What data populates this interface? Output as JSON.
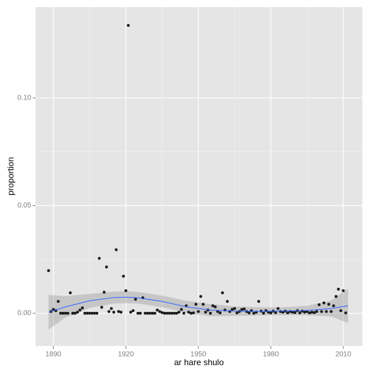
{
  "chart_data": {
    "type": "scatter",
    "x_label": "ar hare shulo",
    "y_label": "proportion",
    "xlim": [
      1882.6,
      2017.9
    ],
    "ylim": [
      -0.0152,
      0.1422
    ],
    "xticks": [
      1890,
      1920,
      1950,
      1980,
      2010
    ],
    "yticks": [
      {
        "value": 0,
        "label": "0.00"
      },
      {
        "value": 0.05,
        "label": "0.05"
      },
      {
        "value": 0.1,
        "label": "0.10"
      }
    ],
    "grid": true,
    "series": [
      {
        "color": "#1a1a1a",
        "x": [
          1888,
          1889,
          1890,
          1891,
          1892,
          1893,
          1894,
          1895,
          1896,
          1897,
          1898,
          1899,
          1900,
          1901,
          1902,
          1903,
          1904,
          1905,
          1906,
          1907,
          1908,
          1909,
          1910,
          1911,
          1912,
          1913,
          1914,
          1915,
          1916,
          1917,
          1918,
          1919,
          1920,
          1921,
          1922,
          1923,
          1924,
          1925,
          1926,
          1927,
          1928,
          1929,
          1930,
          1931,
          1932,
          1933,
          1934,
          1935,
          1936,
          1937,
          1938,
          1939,
          1940,
          1941,
          1942,
          1943,
          1944,
          1945,
          1946,
          1947,
          1948,
          1949,
          1950,
          1951,
          1952,
          1953,
          1954,
          1955,
          1956,
          1957,
          1958,
          1959,
          1960,
          1961,
          1962,
          1963,
          1964,
          1965,
          1966,
          1967,
          1968,
          1969,
          1970,
          1971,
          1972,
          1973,
          1974,
          1975,
          1976,
          1977,
          1978,
          1979,
          1980,
          1981,
          1982,
          1983,
          1984,
          1985,
          1986,
          1987,
          1988,
          1989,
          1990,
          1991,
          1992,
          1993,
          1994,
          1995,
          1996,
          1997,
          1998,
          1999,
          2000,
          2001,
          2002,
          2003,
          2004,
          2005,
          2006,
          2007,
          2008,
          2009,
          2010,
          2011
        ],
        "values": [
          0.0198,
          0.0008,
          0.0018,
          0.0012,
          0.0055,
          0,
          0,
          0,
          0,
          0.0095,
          0,
          0,
          0.0005,
          0.0015,
          0.0025,
          0,
          0,
          0,
          0,
          0,
          0,
          0.0255,
          0.0028,
          0.0098,
          0.0215,
          0.0008,
          0.0022,
          0.0005,
          0.0295,
          0.0008,
          0.0005,
          0.0172,
          0.0105,
          0.1337,
          0.0005,
          0.0012,
          0.0065,
          0,
          0,
          0.0072,
          0,
          0,
          0,
          0,
          0,
          0.0015,
          0.0008,
          0.0003,
          0,
          0,
          0,
          0,
          0,
          0,
          0.0005,
          0.0018,
          0,
          0.0035,
          0.0005,
          0,
          0.0002,
          0.0042,
          0.0008,
          0.0078,
          0.0042,
          0.0005,
          0.0015,
          0,
          0.0035,
          0.003,
          0.0008,
          0.0002,
          0.0095,
          0.0015,
          0.0055,
          0.0008,
          0.0018,
          0.0022,
          0.0002,
          0.0008,
          0.0018,
          0.002,
          0.0008,
          0.0002,
          0.0012,
          0,
          0.0005,
          0.0055,
          0.001,
          0,
          0.0012,
          0.0005,
          0.0002,
          0.001,
          0.0003,
          0.0022,
          0.0008,
          0.0005,
          0.001,
          0.0002,
          0.0008,
          0.0005,
          0.0003,
          0.0012,
          0.0002,
          0.001,
          0.0005,
          0.0008,
          0.0002,
          0.0005,
          0.0003,
          0.0008,
          0.004,
          0.0008,
          0.0048,
          0.0008,
          0.0042,
          0.0008,
          0.0035,
          0.0078,
          0.0112,
          0.0012,
          0.0105,
          0.0002
        ]
      }
    ],
    "smooth": {
      "color": "#3366ff",
      "band_color": "#999999",
      "x": [
        1888,
        1895,
        1905,
        1915,
        1920,
        1925,
        1935,
        1945,
        1955,
        1965,
        1975,
        1985,
        1995,
        2005,
        2012
      ],
      "values": [
        0.0005,
        0.003,
        0.0058,
        0.0073,
        0.0075,
        0.0072,
        0.0055,
        0.003,
        0.0015,
        0.001,
        0.0009,
        0.001,
        0.0013,
        0.0022,
        0.0035
      ],
      "lower": [
        -0.0075,
        -0.002,
        0.0025,
        0.0045,
        0.0047,
        0.0045,
        0.0028,
        0.0002,
        -0.0013,
        -0.0012,
        -0.001,
        -0.0008,
        -0.0009,
        -0.0015,
        -0.0045
      ],
      "upper": [
        0.0085,
        0.008,
        0.009,
        0.0101,
        0.0103,
        0.0099,
        0.0082,
        0.0058,
        0.0043,
        0.0032,
        0.0028,
        0.0028,
        0.0035,
        0.0059,
        0.0115
      ]
    }
  }
}
